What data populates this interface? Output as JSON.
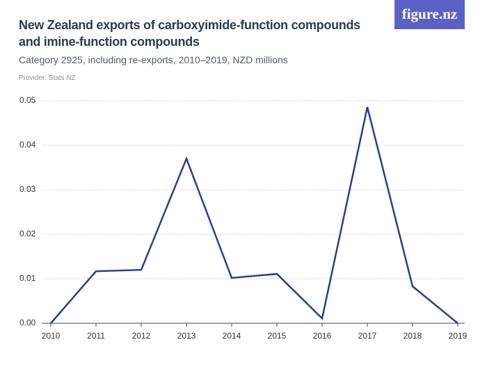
{
  "chart_data": {
    "type": "line",
    "title": "New Zealand exports of carboxyimide-function compounds and imine-function compounds",
    "subtitle": "Category 2925, including re-exports, 2010–2019, NZD millions",
    "source": "Provider: Stats NZ",
    "brand": "figure.nz",
    "categories": [
      "2010",
      "2011",
      "2012",
      "2013",
      "2014",
      "2015",
      "2016",
      "2017",
      "2018",
      "2019"
    ],
    "series": [
      {
        "name": "Exports",
        "color": "#2b3d8f",
        "values": [
          0,
          0.0117,
          0.012,
          0.037,
          0.0102,
          0.0111,
          0.0011,
          0.0486,
          0.0083,
          0
        ]
      }
    ],
    "ylim": [
      0,
      0.05
    ],
    "yticks": [
      {
        "value": 0,
        "label": "0.00"
      },
      0.01,
      0.02,
      0.03,
      0.04,
      0.05
    ],
    "grid": true
  }
}
